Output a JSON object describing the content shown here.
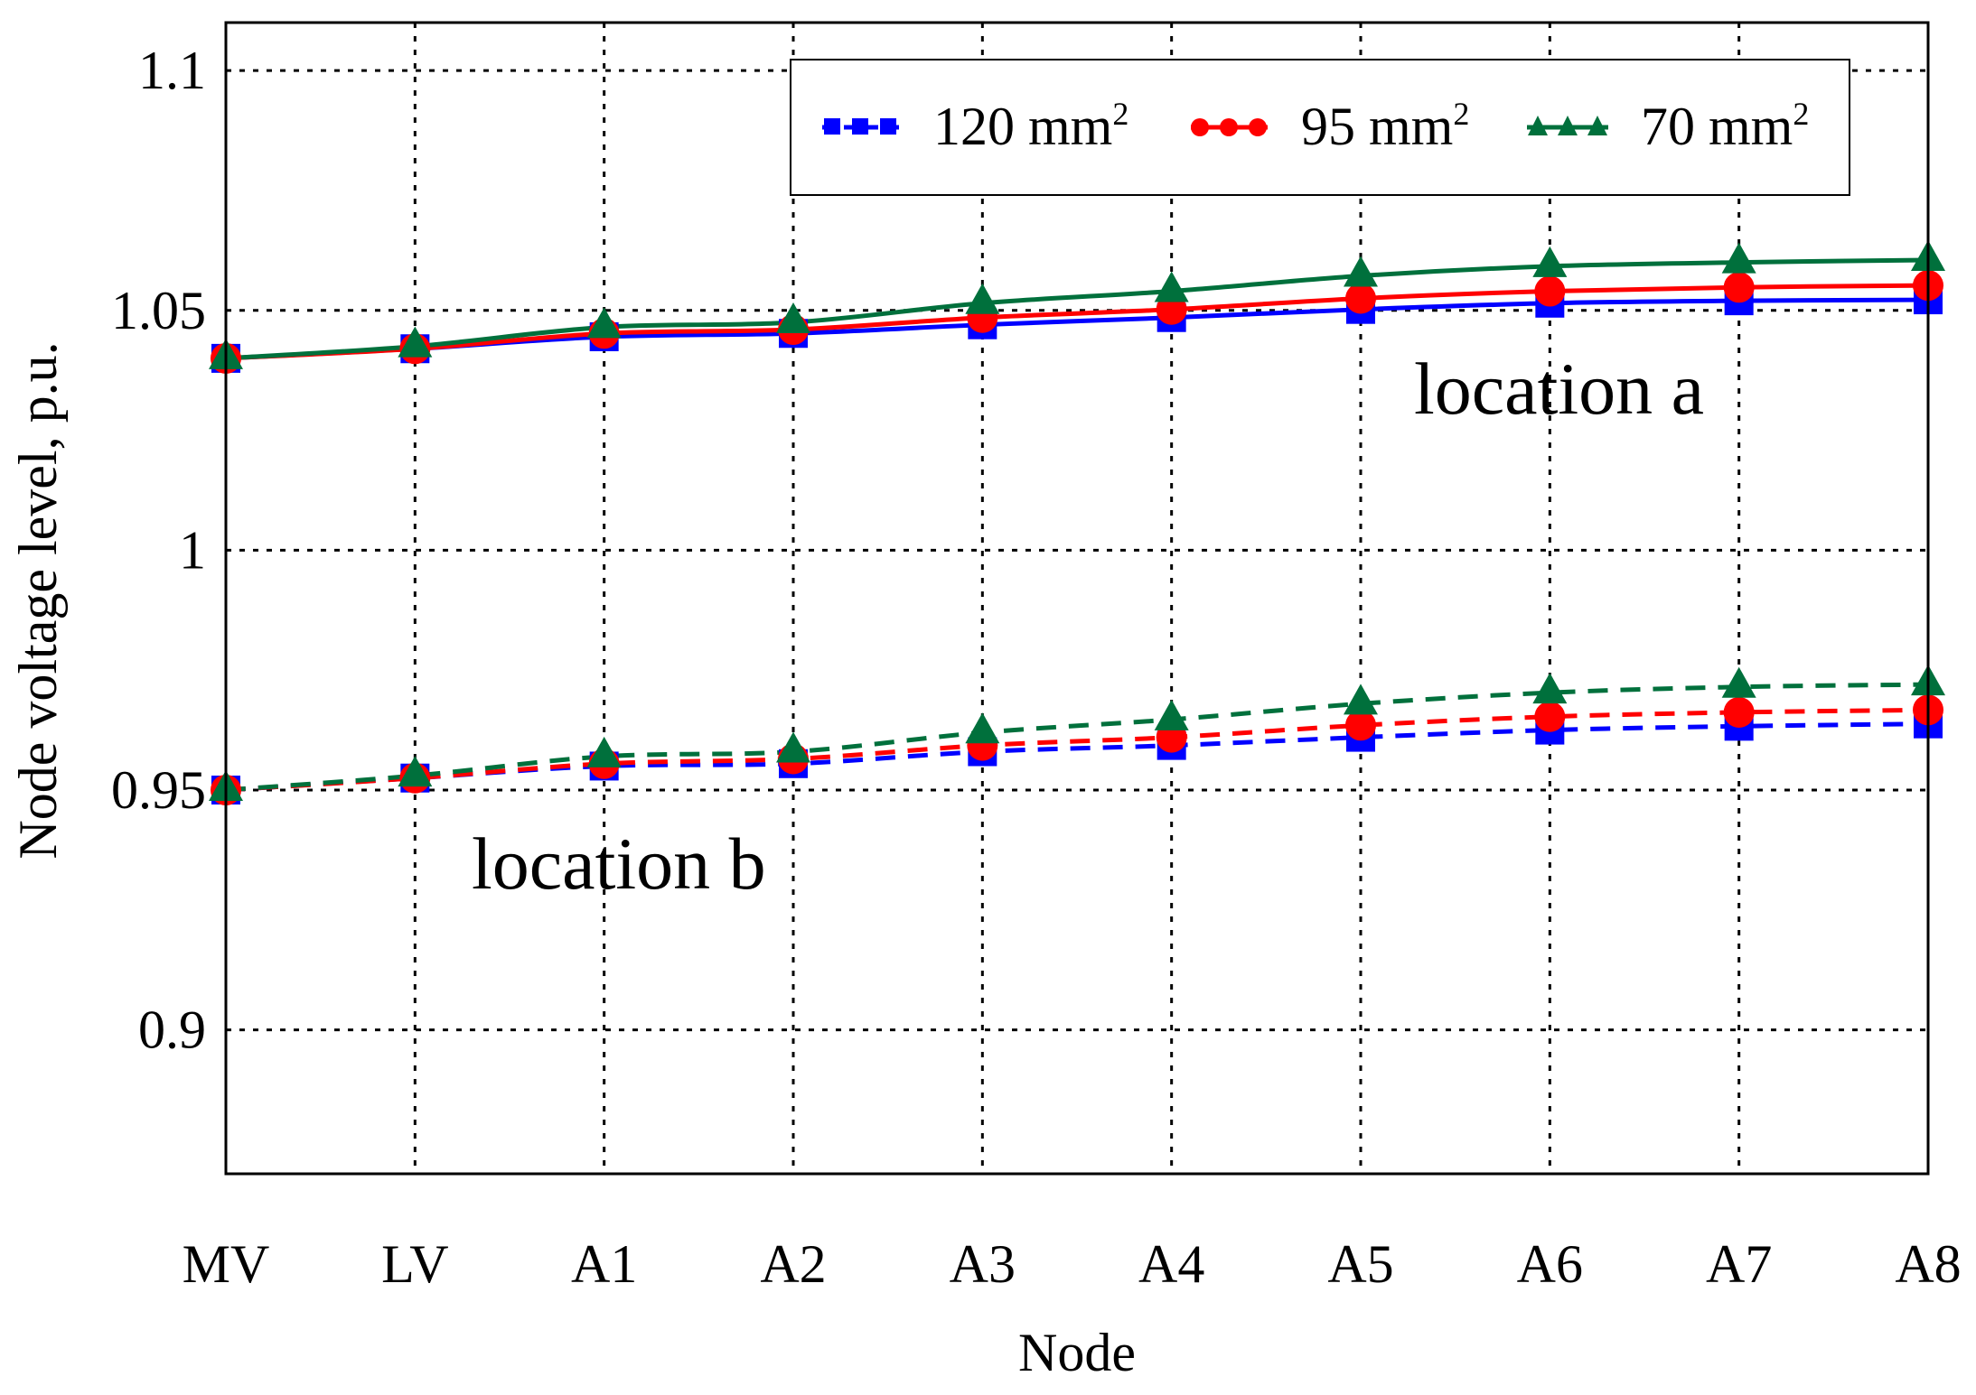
{
  "chart_data": {
    "type": "line",
    "title": "",
    "xlabel": "Node",
    "ylabel": "Node voltage level, p.u.",
    "categories": [
      "MV",
      "LV",
      "A1",
      "A2",
      "A3",
      "A4",
      "A5",
      "A6",
      "A7",
      "A8"
    ],
    "ylim": [
      0.87,
      1.11
    ],
    "yticks": [
      0.9,
      0.95,
      1,
      1.05,
      1.1
    ],
    "ytick_labels": [
      "0.9",
      "0.95",
      "1",
      "1.05",
      "1.1"
    ],
    "grid": true,
    "legend_position": "top-right",
    "legend": [
      {
        "base": "120 mm",
        "sup": "2",
        "color": "#0000ff",
        "marker": "square"
      },
      {
        "base": "95 mm",
        "sup": "2",
        "color": "#ff0000",
        "marker": "circle"
      },
      {
        "base": "70 mm",
        "sup": "2",
        "color": "#00703c",
        "marker": "triangle"
      }
    ],
    "series": [
      {
        "name": "120 mm2 location a",
        "group": "a",
        "color": "#0000ff",
        "marker": "square",
        "dash": "solid",
        "values": [
          1.04,
          1.042,
          1.0445,
          1.0452,
          1.047,
          1.0485,
          1.0502,
          1.0515,
          1.052,
          1.0522
        ]
      },
      {
        "name": "95 mm2 location a",
        "group": "a",
        "color": "#ff0000",
        "marker": "circle",
        "dash": "solid",
        "values": [
          1.04,
          1.042,
          1.0452,
          1.046,
          1.0485,
          1.0502,
          1.0525,
          1.054,
          1.0548,
          1.0552
        ]
      },
      {
        "name": "70 mm2 location a",
        "group": "a",
        "color": "#00703c",
        "marker": "triangle",
        "dash": "solid",
        "values": [
          1.04,
          1.0425,
          1.0465,
          1.0475,
          1.0515,
          1.054,
          1.0572,
          1.0592,
          1.06,
          1.0605
        ]
      },
      {
        "name": "120 mm2 location b",
        "group": "b",
        "color": "#0000ff",
        "marker": "square",
        "dash": "dashed",
        "values": [
          0.95,
          0.9525,
          0.955,
          0.9555,
          0.958,
          0.9593,
          0.961,
          0.9625,
          0.9633,
          0.9638
        ]
      },
      {
        "name": "95 mm2 location b",
        "group": "b",
        "color": "#ff0000",
        "marker": "circle",
        "dash": "dashed",
        "values": [
          0.95,
          0.9525,
          0.9555,
          0.9565,
          0.9593,
          0.961,
          0.9635,
          0.9653,
          0.9662,
          0.9667
        ]
      },
      {
        "name": "70 mm2 location b",
        "group": "b",
        "color": "#00703c",
        "marker": "triangle",
        "dash": "dashed",
        "values": [
          0.95,
          0.953,
          0.957,
          0.958,
          0.962,
          0.9647,
          0.968,
          0.9703,
          0.9715,
          0.972
        ]
      }
    ],
    "annotations": [
      {
        "text": "location a"
      },
      {
        "text": "location b"
      }
    ]
  }
}
